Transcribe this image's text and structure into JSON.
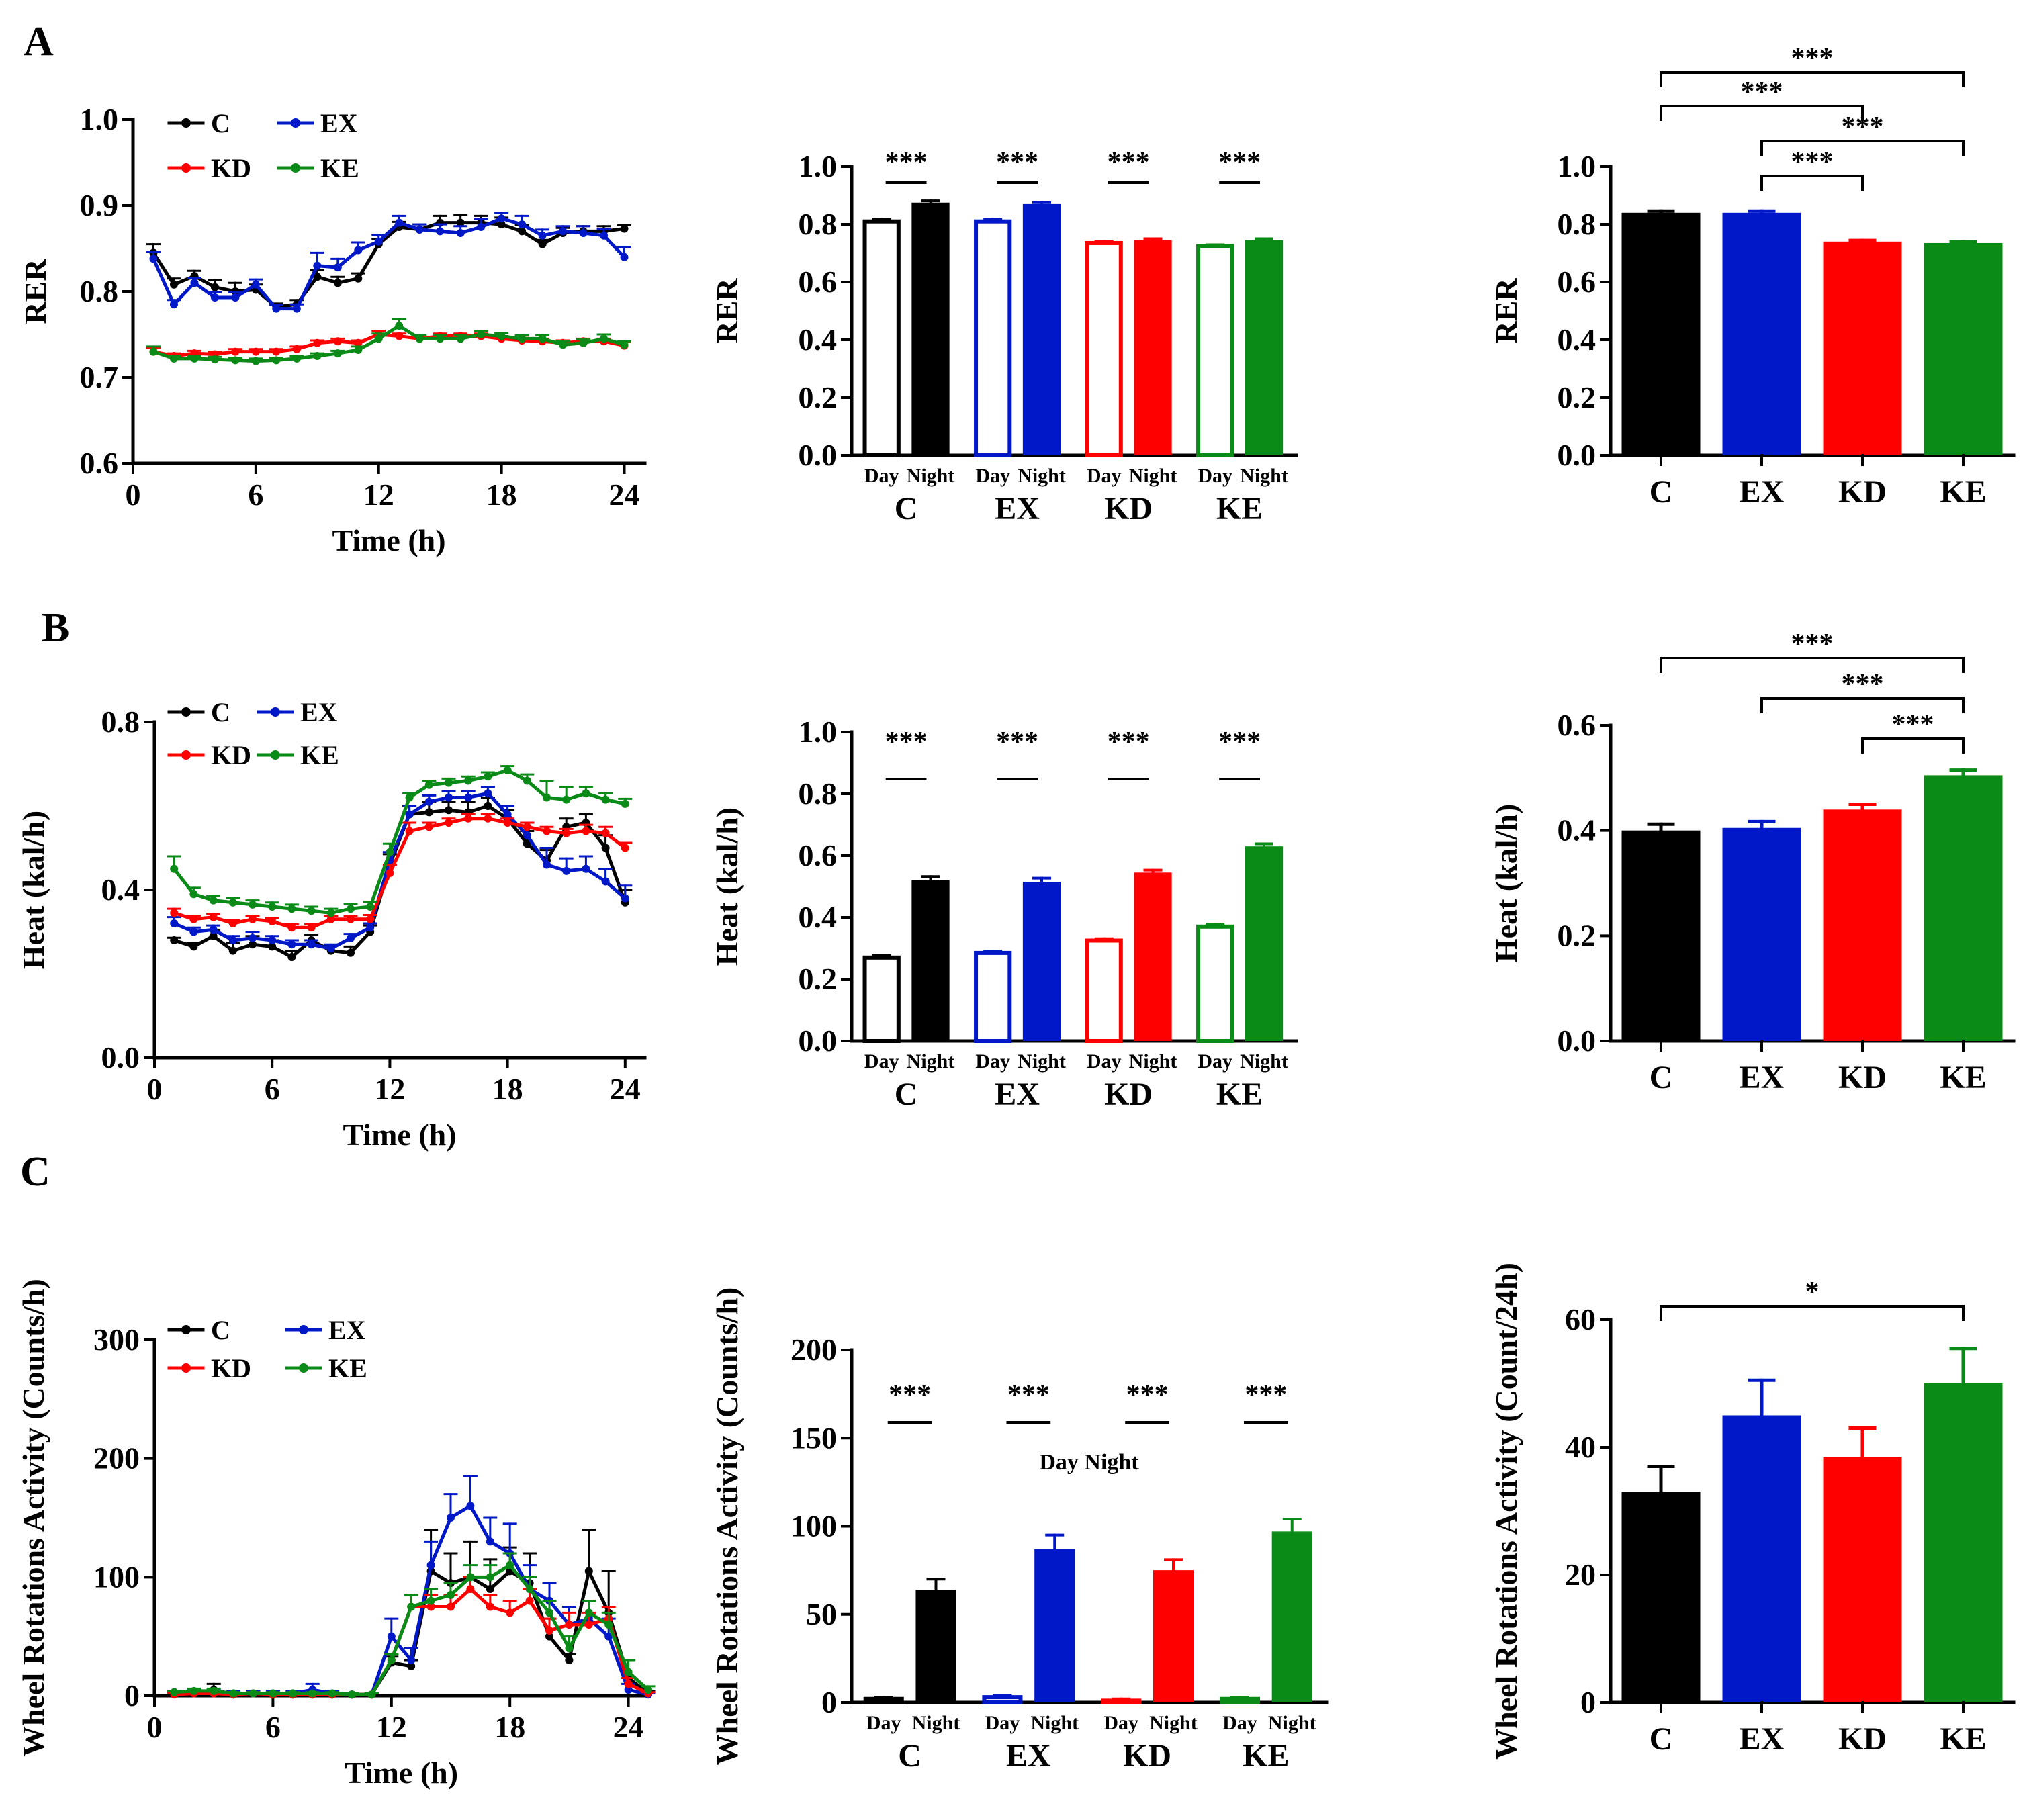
{
  "panel_labels": [
    "A",
    "B",
    "C"
  ],
  "series_colors": {
    "C": "#000000",
    "EX": "#0018c8",
    "KD": "#ff0000",
    "KE": "#0a8a16"
  },
  "chart_data": [
    {
      "id": "A1",
      "type": "line",
      "ylabel": "RER",
      "xlabel": "Time (h)",
      "xlim": [
        0,
        25
      ],
      "ylim": [
        0.6,
        1.0
      ],
      "xticks": [
        0,
        6,
        12,
        18,
        24
      ],
      "yticks": [
        0.6,
        0.7,
        0.8,
        0.9,
        1.0
      ],
      "ytick_labels": [
        "0.6",
        "0.7",
        "0.8",
        "0.9",
        "1.0"
      ],
      "legend": [
        "C",
        "EX",
        "KD",
        "KE"
      ],
      "x": [
        1,
        2,
        3,
        4,
        5,
        6,
        7,
        8,
        9,
        10,
        11,
        12,
        13,
        14,
        15,
        16,
        17,
        18,
        19,
        20,
        21,
        22,
        23,
        24
      ],
      "series": [
        {
          "name": "C",
          "values": [
            0.845,
            0.808,
            0.818,
            0.805,
            0.8,
            0.802,
            0.782,
            0.785,
            0.817,
            0.81,
            0.815,
            0.855,
            0.875,
            0.872,
            0.88,
            0.88,
            0.88,
            0.878,
            0.87,
            0.855,
            0.868,
            0.87,
            0.87,
            0.873
          ],
          "errors": [
            0.01,
            0.007,
            0.006,
            0.008,
            0.01,
            0.006,
            0.004,
            0.005,
            0.008,
            0.007,
            0.006,
            0.006,
            0.006,
            0.006,
            0.008,
            0.009,
            0.008,
            0.008,
            0.007,
            0.005,
            0.006,
            0.006,
            0.006,
            0.004
          ]
        },
        {
          "name": "EX",
          "values": [
            0.838,
            0.785,
            0.81,
            0.793,
            0.793,
            0.808,
            0.78,
            0.78,
            0.83,
            0.828,
            0.848,
            0.858,
            0.88,
            0.872,
            0.87,
            0.868,
            0.875,
            0.885,
            0.878,
            0.865,
            0.87,
            0.868,
            0.865,
            0.84
          ],
          "errors": [
            0.008,
            0.005,
            0.006,
            0.006,
            0.006,
            0.006,
            0.004,
            0.005,
            0.015,
            0.01,
            0.009,
            0.008,
            0.008,
            0.006,
            0.008,
            0.008,
            0.009,
            0.006,
            0.01,
            0.007,
            0.006,
            0.008,
            0.008,
            0.012
          ]
        },
        {
          "name": "KD",
          "values": [
            0.73,
            0.725,
            0.728,
            0.727,
            0.73,
            0.73,
            0.73,
            0.733,
            0.74,
            0.742,
            0.74,
            0.75,
            0.748,
            0.745,
            0.748,
            0.748,
            0.748,
            0.745,
            0.743,
            0.742,
            0.74,
            0.742,
            0.742,
            0.737
          ],
          "errors": [
            0.004,
            0.003,
            0.003,
            0.003,
            0.003,
            0.003,
            0.003,
            0.003,
            0.003,
            0.003,
            0.003,
            0.004,
            0.003,
            0.003,
            0.003,
            0.003,
            0.003,
            0.003,
            0.003,
            0.003,
            0.003,
            0.003,
            0.003,
            0.004
          ]
        },
        {
          "name": "KE",
          "values": [
            0.73,
            0.722,
            0.722,
            0.721,
            0.72,
            0.719,
            0.72,
            0.722,
            0.725,
            0.728,
            0.732,
            0.745,
            0.76,
            0.745,
            0.745,
            0.745,
            0.75,
            0.748,
            0.745,
            0.745,
            0.738,
            0.74,
            0.745,
            0.738
          ],
          "errors": [
            0.006,
            0.003,
            0.003,
            0.003,
            0.003,
            0.003,
            0.003,
            0.003,
            0.003,
            0.003,
            0.004,
            0.006,
            0.008,
            0.004,
            0.004,
            0.004,
            0.004,
            0.004,
            0.004,
            0.004,
            0.004,
            0.004,
            0.005,
            0.004
          ]
        }
      ]
    },
    {
      "id": "A2",
      "type": "bar",
      "ylabel": "RER",
      "ylim": [
        0.0,
        1.0
      ],
      "yticks": [
        0.0,
        0.2,
        0.4,
        0.6,
        0.8,
        1.0
      ],
      "ytick_labels": [
        "0.0",
        "0.2",
        "0.4",
        "0.6",
        "0.8",
        "1.0"
      ],
      "groups": [
        "C",
        "EX",
        "KD",
        "KE"
      ],
      "sublabels": [
        "Day",
        "Night"
      ],
      "day": [
        0.81,
        0.81,
        0.735,
        0.725
      ],
      "night": [
        0.875,
        0.87,
        0.745,
        0.745
      ],
      "day_err": [
        0.007,
        0.007,
        0.005,
        0.004
      ],
      "night_err": [
        0.006,
        0.005,
        0.005,
        0.005
      ],
      "significance": [
        "***",
        "***",
        "***",
        "***"
      ]
    },
    {
      "id": "A3",
      "type": "bar",
      "ylabel": "RER",
      "ylim": [
        0.0,
        1.0
      ],
      "yticks": [
        0.0,
        0.2,
        0.4,
        0.6,
        0.8,
        1.0
      ],
      "ytick_labels": [
        "0.0",
        "0.2",
        "0.4",
        "0.6",
        "0.8",
        "1.0"
      ],
      "categories": [
        "C",
        "EX",
        "KD",
        "KE"
      ],
      "values": [
        0.84,
        0.84,
        0.74,
        0.735
      ],
      "errors": [
        0.006,
        0.006,
        0.004,
        0.004
      ],
      "comparisons": [
        {
          "from": "C",
          "to": "KE",
          "label": "***"
        },
        {
          "from": "C",
          "to": "KD",
          "label": "***"
        },
        {
          "from": "EX",
          "to": "KE",
          "label": "***"
        },
        {
          "from": "EX",
          "to": "KD",
          "label": "***"
        }
      ]
    },
    {
      "id": "B1",
      "type": "line",
      "ylabel": "Heat (kal/h)",
      "xlabel": "Time (h)",
      "xlim": [
        0,
        25
      ],
      "ylim": [
        0.0,
        0.8
      ],
      "xticks": [
        0,
        6,
        12,
        18,
        24
      ],
      "yticks": [
        0.0,
        0.4,
        0.8
      ],
      "ytick_labels": [
        "0.0",
        "0.4",
        "0.8"
      ],
      "legend": [
        "C",
        "EX",
        "KD",
        "KE"
      ],
      "x": [
        1,
        2,
        3,
        4,
        5,
        6,
        7,
        8,
        9,
        10,
        11,
        12,
        13,
        14,
        15,
        16,
        17,
        18,
        19,
        20,
        21,
        22,
        23,
        24
      ],
      "series": [
        {
          "name": "C",
          "values": [
            0.28,
            0.265,
            0.29,
            0.255,
            0.27,
            0.265,
            0.24,
            0.28,
            0.255,
            0.25,
            0.3,
            0.46,
            0.58,
            0.585,
            0.59,
            0.585,
            0.6,
            0.57,
            0.51,
            0.47,
            0.55,
            0.56,
            0.5,
            0.37
          ],
          "errors": [
            0.006,
            0.008,
            0.015,
            0.018,
            0.02,
            0.015,
            0.015,
            0.012,
            0.012,
            0.015,
            0.015,
            0.025,
            0.02,
            0.025,
            0.02,
            0.025,
            0.02,
            0.02,
            0.03,
            0.025,
            0.02,
            0.02,
            0.03,
            0.03
          ]
        },
        {
          "name": "EX",
          "values": [
            0.32,
            0.3,
            0.305,
            0.28,
            0.285,
            0.28,
            0.27,
            0.27,
            0.26,
            0.285,
            0.31,
            0.47,
            0.58,
            0.61,
            0.62,
            0.62,
            0.63,
            0.58,
            0.53,
            0.46,
            0.445,
            0.45,
            0.42,
            0.38
          ],
          "errors": [
            0.015,
            0.01,
            0.01,
            0.01,
            0.015,
            0.01,
            0.01,
            0.01,
            0.01,
            0.01,
            0.01,
            0.02,
            0.02,
            0.015,
            0.015,
            0.015,
            0.015,
            0.02,
            0.03,
            0.04,
            0.03,
            0.03,
            0.03,
            0.03
          ]
        },
        {
          "name": "KD",
          "values": [
            0.345,
            0.33,
            0.335,
            0.32,
            0.33,
            0.325,
            0.31,
            0.31,
            0.33,
            0.33,
            0.33,
            0.44,
            0.54,
            0.55,
            0.56,
            0.57,
            0.57,
            0.56,
            0.55,
            0.54,
            0.535,
            0.54,
            0.535,
            0.5
          ],
          "errors": [
            0.01,
            0.008,
            0.008,
            0.008,
            0.008,
            0.008,
            0.008,
            0.008,
            0.008,
            0.008,
            0.01,
            0.02,
            0.02,
            0.01,
            0.01,
            0.01,
            0.01,
            0.01,
            0.01,
            0.01,
            0.01,
            0.015,
            0.015,
            0.012
          ]
        },
        {
          "name": "KE",
          "values": [
            0.45,
            0.39,
            0.375,
            0.37,
            0.365,
            0.36,
            0.355,
            0.35,
            0.345,
            0.355,
            0.36,
            0.49,
            0.62,
            0.65,
            0.655,
            0.66,
            0.67,
            0.685,
            0.66,
            0.62,
            0.615,
            0.63,
            0.615,
            0.605
          ],
          "errors": [
            0.03,
            0.015,
            0.01,
            0.01,
            0.01,
            0.01,
            0.01,
            0.01,
            0.01,
            0.012,
            0.012,
            0.02,
            0.01,
            0.01,
            0.01,
            0.01,
            0.01,
            0.01,
            0.015,
            0.04,
            0.03,
            0.015,
            0.015,
            0.012
          ]
        }
      ]
    },
    {
      "id": "B2",
      "type": "bar",
      "ylabel": "Heat (kal/h)",
      "ylim": [
        0.0,
        1.0
      ],
      "yticks": [
        0.0,
        0.2,
        0.4,
        0.6,
        0.8,
        1.0
      ],
      "ytick_labels": [
        "0.0",
        "0.2",
        "0.4",
        "0.6",
        "0.8",
        "1.0"
      ],
      "groups": [
        "C",
        "EX",
        "KD",
        "KE"
      ],
      "sublabels": [
        "Day",
        "Night"
      ],
      "day": [
        0.27,
        0.285,
        0.325,
        0.37
      ],
      "night": [
        0.52,
        0.515,
        0.545,
        0.63
      ],
      "day_err": [
        0.006,
        0.006,
        0.006,
        0.008
      ],
      "night_err": [
        0.012,
        0.012,
        0.008,
        0.008
      ],
      "significance": [
        "***",
        "***",
        "***",
        "***"
      ]
    },
    {
      "id": "B3",
      "type": "bar",
      "ylabel": "Heat (kal/h)",
      "ylim": [
        0.0,
        0.6
      ],
      "yticks": [
        0.0,
        0.2,
        0.4,
        0.6
      ],
      "ytick_labels": [
        "0.0",
        "0.2",
        "0.4",
        "0.6"
      ],
      "categories": [
        "C",
        "EX",
        "KD",
        "KE"
      ],
      "values": [
        0.4,
        0.405,
        0.44,
        0.505
      ],
      "errors": [
        0.012,
        0.012,
        0.01,
        0.01
      ],
      "comparisons": [
        {
          "from": "C",
          "to": "KE",
          "label": "***"
        },
        {
          "from": "EX",
          "to": "KE",
          "label": "***"
        },
        {
          "from": "KD",
          "to": "KE",
          "label": "***"
        }
      ]
    },
    {
      "id": "C1",
      "type": "line",
      "ylabel": "Wheel Rotations Activity (Counts/h)",
      "xlabel": "Time (h)",
      "xlim": [
        0,
        25
      ],
      "ylim": [
        0,
        300
      ],
      "xticks": [
        0,
        6,
        12,
        18,
        24
      ],
      "yticks": [
        0,
        100,
        200,
        300
      ],
      "ytick_labels": [
        "0",
        "100",
        "200",
        "300"
      ],
      "legend": [
        "C",
        "EX",
        "KD",
        "KE"
      ],
      "x": [
        1,
        2,
        3,
        4,
        5,
        6,
        7,
        8,
        9,
        10,
        11,
        12,
        13,
        14,
        15,
        16,
        17,
        18,
        19,
        20,
        21,
        22,
        23,
        24,
        25
      ],
      "series": [
        {
          "name": "C",
          "values": [
            2,
            2,
            5,
            1,
            2,
            1,
            1,
            1,
            1,
            1,
            1,
            28,
            25,
            105,
            95,
            100,
            90,
            105,
            95,
            50,
            30,
            105,
            70,
            15,
            2
          ],
          "errors": [
            1,
            1,
            5,
            1,
            1,
            1,
            1,
            1,
            1,
            1,
            1,
            5,
            5,
            35,
            25,
            30,
            25,
            20,
            25,
            15,
            5,
            35,
            35,
            15,
            2
          ]
        },
        {
          "name": "EX",
          "values": [
            3,
            3,
            3,
            2,
            2,
            2,
            2,
            5,
            2,
            1,
            1,
            50,
            30,
            110,
            150,
            160,
            130,
            120,
            90,
            80,
            60,
            65,
            50,
            5,
            1
          ],
          "errors": [
            1,
            2,
            2,
            2,
            2,
            2,
            2,
            5,
            2,
            1,
            1,
            15,
            10,
            20,
            20,
            25,
            20,
            25,
            20,
            15,
            15,
            15,
            15,
            5,
            1
          ]
        },
        {
          "name": "KD",
          "values": [
            1,
            2,
            2,
            1,
            2,
            1,
            1,
            1,
            1,
            1,
            1,
            30,
            75,
            75,
            75,
            90,
            75,
            70,
            80,
            55,
            60,
            60,
            65,
            10,
            2
          ],
          "errors": [
            1,
            1,
            1,
            1,
            1,
            1,
            1,
            1,
            1,
            1,
            1,
            5,
            10,
            10,
            10,
            10,
            10,
            10,
            10,
            10,
            10,
            10,
            10,
            5,
            1
          ]
        },
        {
          "name": "KE",
          "values": [
            3,
            4,
            4,
            2,
            2,
            2,
            2,
            2,
            2,
            1,
            1,
            30,
            75,
            80,
            85,
            100,
            100,
            110,
            90,
            70,
            40,
            70,
            60,
            20,
            5
          ],
          "errors": [
            1,
            2,
            2,
            1,
            1,
            1,
            1,
            1,
            1,
            1,
            1,
            5,
            10,
            10,
            10,
            10,
            10,
            10,
            10,
            10,
            10,
            10,
            10,
            10,
            3
          ]
        }
      ]
    },
    {
      "id": "C2",
      "type": "bar",
      "ylabel": "Wheel Rotations Activity (Counts/h)",
      "ylim": [
        0,
        200
      ],
      "yticks": [
        0,
        50,
        100,
        150,
        200
      ],
      "ytick_labels": [
        "0",
        "50",
        "100",
        "150",
        "200"
      ],
      "groups": [
        "C",
        "EX",
        "KD",
        "KE"
      ],
      "sublabels": [
        "Day",
        "Night"
      ],
      "day": [
        2,
        3,
        1,
        2
      ],
      "night": [
        64,
        87,
        75,
        97
      ],
      "day_err": [
        1,
        1,
        1,
        1
      ],
      "night_err": [
        6,
        8,
        6,
        7
      ],
      "significance": [
        "***",
        "***",
        "***",
        "***"
      ],
      "annotation": "Day Night"
    },
    {
      "id": "C3",
      "type": "bar",
      "ylabel": "Wheel Rotations Activity (Count/24h)",
      "ylim": [
        0,
        60
      ],
      "yticks": [
        0,
        20,
        40,
        60
      ],
      "ytick_labels": [
        "0",
        "20",
        "40",
        "60"
      ],
      "categories": [
        "C",
        "EX",
        "KD",
        "KE"
      ],
      "values": [
        33,
        45,
        38.5,
        50
      ],
      "errors": [
        4,
        5.5,
        4.5,
        5.5
      ],
      "comparisons": [
        {
          "from": "C",
          "to": "KE",
          "label": "*"
        }
      ]
    }
  ]
}
